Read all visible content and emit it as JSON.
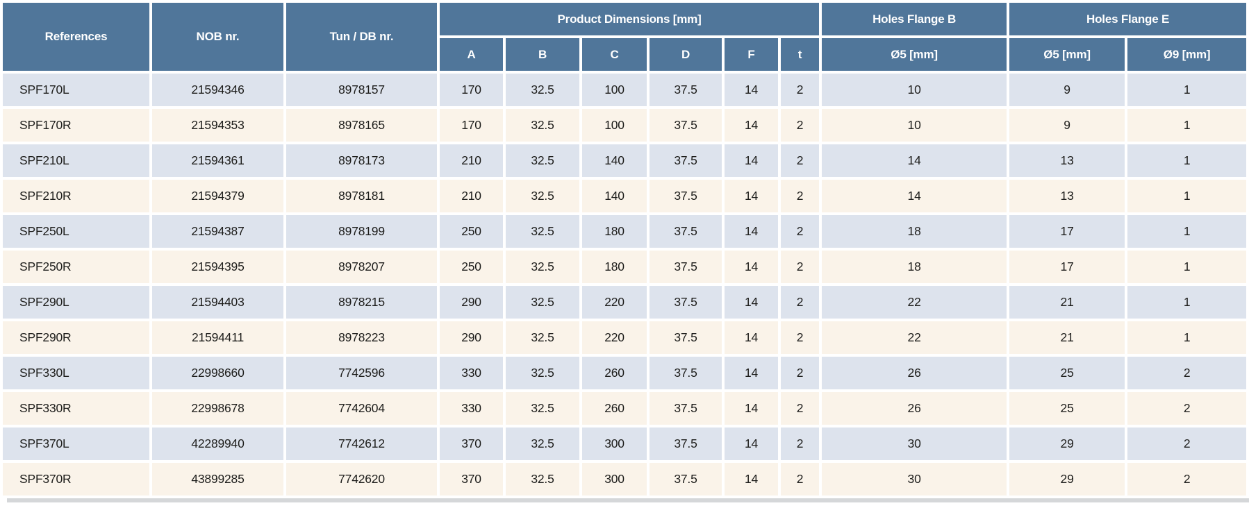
{
  "table": {
    "header": {
      "references": "References",
      "nob": "NOB nr.",
      "tun_db": "Tun / DB nr.",
      "product_dimensions": {
        "label": "Product Dimensions [mm]",
        "sub": [
          "A",
          "B",
          "C",
          "D",
          "F",
          "t"
        ]
      },
      "holes_flange_b": {
        "label": "Holes Flange B",
        "sub": [
          "Ø5 [mm]"
        ]
      },
      "holes_flange_e": {
        "label": "Holes Flange E",
        "sub": [
          "Ø5 [mm]",
          "Ø9 [mm]"
        ]
      }
    },
    "col_ids": [
      "reference-cell",
      "nob-cell",
      "tun-db-cell",
      "dim-a-cell",
      "dim-b-cell",
      "dim-c-cell",
      "dim-d-cell",
      "dim-f-cell",
      "dim-t-cell",
      "flange-b-d5-cell",
      "flange-e-d5-cell",
      "flange-e-d9-cell"
    ],
    "rows": [
      [
        "SPF170L",
        "21594346",
        "8978157",
        "170",
        "32.5",
        "100",
        "37.5",
        "14",
        "2",
        "10",
        "9",
        "1"
      ],
      [
        "SPF170R",
        "21594353",
        "8978165",
        "170",
        "32.5",
        "100",
        "37.5",
        "14",
        "2",
        "10",
        "9",
        "1"
      ],
      [
        "SPF210L",
        "21594361",
        "8978173",
        "210",
        "32.5",
        "140",
        "37.5",
        "14",
        "2",
        "14",
        "13",
        "1"
      ],
      [
        "SPF210R",
        "21594379",
        "8978181",
        "210",
        "32.5",
        "140",
        "37.5",
        "14",
        "2",
        "14",
        "13",
        "1"
      ],
      [
        "SPF250L",
        "21594387",
        "8978199",
        "250",
        "32.5",
        "180",
        "37.5",
        "14",
        "2",
        "18",
        "17",
        "1"
      ],
      [
        "SPF250R",
        "21594395",
        "8978207",
        "250",
        "32.5",
        "180",
        "37.5",
        "14",
        "2",
        "18",
        "17",
        "1"
      ],
      [
        "SPF290L",
        "21594403",
        "8978215",
        "290",
        "32.5",
        "220",
        "37.5",
        "14",
        "2",
        "22",
        "21",
        "1"
      ],
      [
        "SPF290R",
        "21594411",
        "8978223",
        "290",
        "32.5",
        "220",
        "37.5",
        "14",
        "2",
        "22",
        "21",
        "1"
      ],
      [
        "SPF330L",
        "22998660",
        "7742596",
        "330",
        "32.5",
        "260",
        "37.5",
        "14",
        "2",
        "26",
        "25",
        "2"
      ],
      [
        "SPF330R",
        "22998678",
        "7742604",
        "330",
        "32.5",
        "260",
        "37.5",
        "14",
        "2",
        "26",
        "25",
        "2"
      ],
      [
        "SPF370L",
        "42289940",
        "7742612",
        "370",
        "32.5",
        "300",
        "37.5",
        "14",
        "2",
        "30",
        "29",
        "2"
      ],
      [
        "SPF370R",
        "43899285",
        "7742620",
        "370",
        "32.5",
        "300",
        "37.5",
        "14",
        "2",
        "30",
        "29",
        "2"
      ]
    ]
  },
  "colors": {
    "header_bg": "#50769a",
    "header_text": "#ffffff",
    "row_blue_bg": "#dde3ed",
    "row_cream_bg": "#faf3e9",
    "separator": "#ffffff",
    "body_text": "#1d1d1b",
    "partial_row_strip": "#d5d7d9"
  }
}
